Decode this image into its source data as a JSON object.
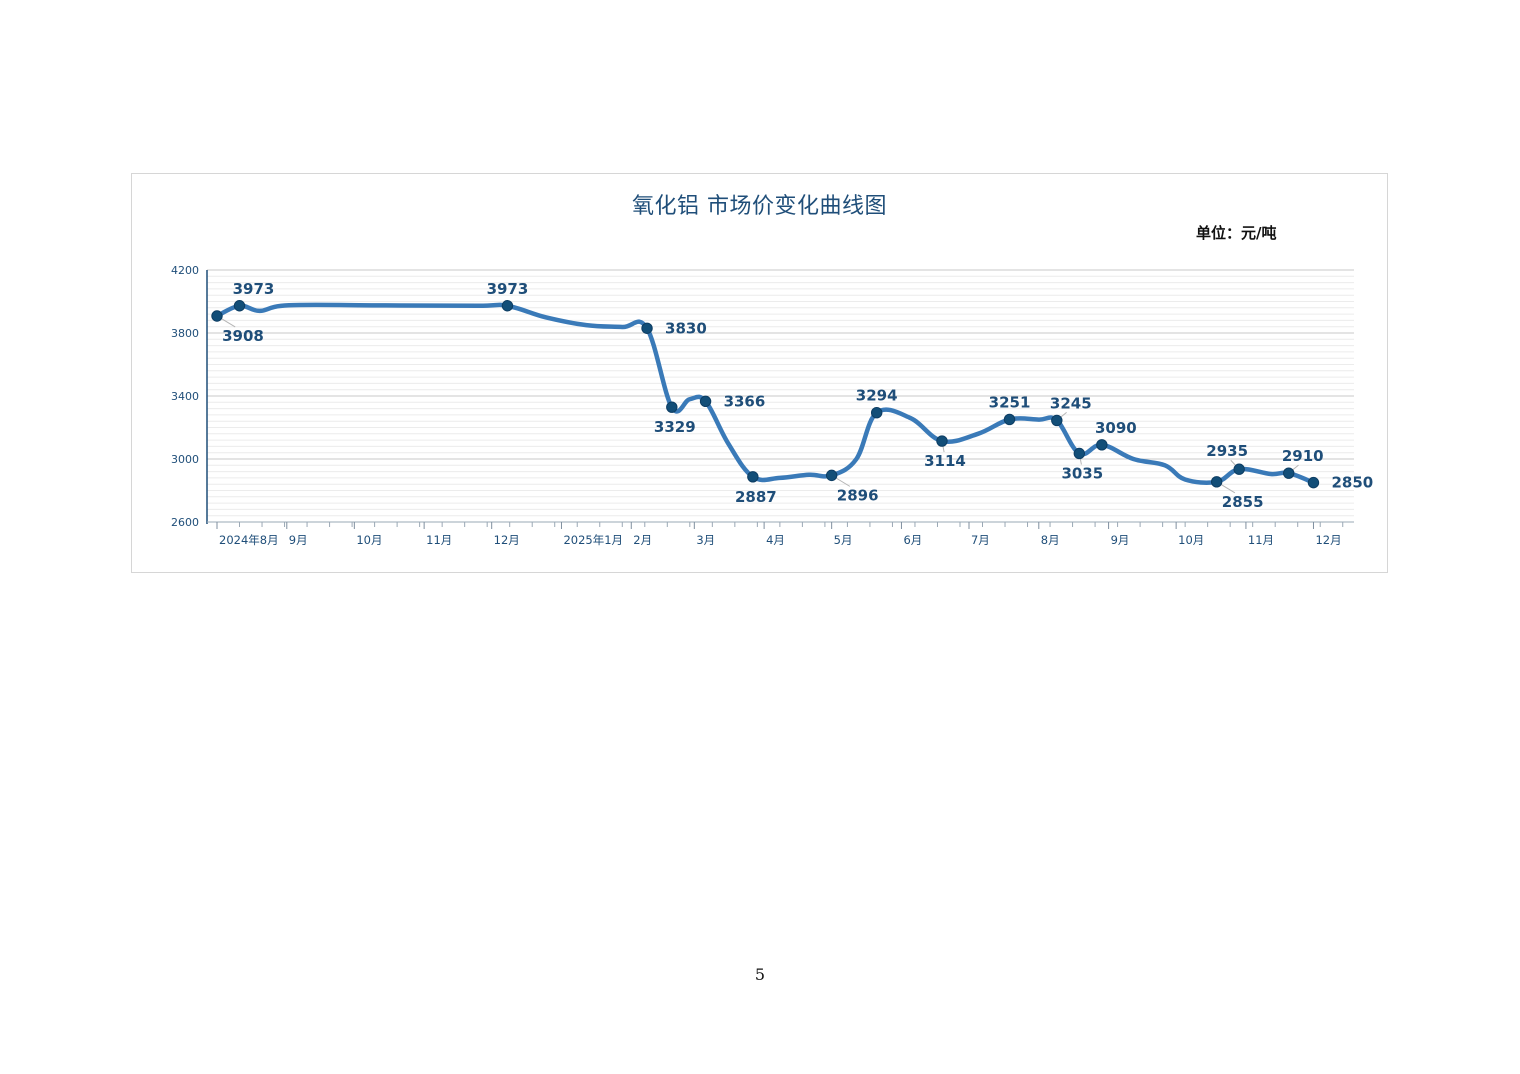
{
  "page": {
    "page_number": "5"
  },
  "chart_data": {
    "type": "line",
    "title": "氧化铝 市场价变化曲线图",
    "unit_label": "单位：元/吨",
    "xlabel": "",
    "ylabel": "",
    "ylim": [
      2600,
      4200
    ],
    "yticks": [
      "4200",
      "3800",
      "3400",
      "3000",
      "2600"
    ],
    "x_range": [
      "2024-08-01",
      "2025-12-19"
    ],
    "month_ticks": [
      {
        "label": "2024年8月",
        "date": "2024-08-01"
      },
      {
        "label": "9月",
        "date": "2024-09-01"
      },
      {
        "label": "10月",
        "date": "2024-10-01"
      },
      {
        "label": "11月",
        "date": "2024-11-01"
      },
      {
        "label": "12月",
        "date": "2024-12-01"
      },
      {
        "label": "2025年1月",
        "date": "2025-01-01"
      },
      {
        "label": "2月",
        "date": "2025-02-01"
      },
      {
        "label": "3月",
        "date": "2025-03-01"
      },
      {
        "label": "4月",
        "date": "2025-04-01"
      },
      {
        "label": "5月",
        "date": "2025-05-01"
      },
      {
        "label": "6月",
        "date": "2025-06-01"
      },
      {
        "label": "7月",
        "date": "2025-07-01"
      },
      {
        "label": "8月",
        "date": "2025-08-01"
      },
      {
        "label": "9月",
        "date": "2025-09-01"
      },
      {
        "label": "10月",
        "date": "2025-10-01"
      },
      {
        "label": "11月",
        "date": "2025-11-01"
      },
      {
        "label": "12月",
        "date": "2025-12-01"
      }
    ],
    "grid": true,
    "legend": "none",
    "colors": {
      "line": "#3a7ab8",
      "marker": "#124e78",
      "label": "#1f4e79",
      "axis": "#1f4e79",
      "grid": "#c8c8c8"
    },
    "series": [
      {
        "values": [
          {
            "date": "2024-08-01",
            "value": 3908
          },
          {
            "date": "2024-08-11",
            "value": 3973
          },
          {
            "date": "2024-08-20",
            "value": 3940
          },
          {
            "date": "2024-09-02",
            "value": 3976
          },
          {
            "date": "2024-10-15",
            "value": 3975
          },
          {
            "date": "2024-11-25",
            "value": 3973
          },
          {
            "date": "2024-12-08",
            "value": 3973
          },
          {
            "date": "2024-12-25",
            "value": 3900
          },
          {
            "date": "2025-01-12",
            "value": 3850
          },
          {
            "date": "2025-01-28",
            "value": 3838
          },
          {
            "date": "2025-02-08",
            "value": 3830
          },
          {
            "date": "2025-02-19",
            "value": 3329
          },
          {
            "date": "2025-02-27",
            "value": 3380
          },
          {
            "date": "2025-03-06",
            "value": 3366
          },
          {
            "date": "2025-03-16",
            "value": 3100
          },
          {
            "date": "2025-03-27",
            "value": 2887
          },
          {
            "date": "2025-04-08",
            "value": 2880
          },
          {
            "date": "2025-04-21",
            "value": 2900
          },
          {
            "date": "2025-05-01",
            "value": 2896
          },
          {
            "date": "2025-05-12",
            "value": 3000
          },
          {
            "date": "2025-05-21",
            "value": 3294
          },
          {
            "date": "2025-06-05",
            "value": 3260
          },
          {
            "date": "2025-06-19",
            "value": 3114
          },
          {
            "date": "2025-07-05",
            "value": 3160
          },
          {
            "date": "2025-07-19",
            "value": 3251
          },
          {
            "date": "2025-08-01",
            "value": 3250
          },
          {
            "date": "2025-08-09",
            "value": 3245
          },
          {
            "date": "2025-08-19",
            "value": 3035
          },
          {
            "date": "2025-08-29",
            "value": 3090
          },
          {
            "date": "2025-09-12",
            "value": 3000
          },
          {
            "date": "2025-09-26",
            "value": 2960
          },
          {
            "date": "2025-10-05",
            "value": 2870
          },
          {
            "date": "2025-10-19",
            "value": 2855
          },
          {
            "date": "2025-10-29",
            "value": 2935
          },
          {
            "date": "2025-11-12",
            "value": 2905
          },
          {
            "date": "2025-11-20",
            "value": 2910
          },
          {
            "date": "2025-12-01",
            "value": 2850
          }
        ]
      }
    ],
    "markers": [
      {
        "date": "2024-08-01",
        "value": 3908,
        "label": "3908",
        "label_pos": "below-right",
        "leader": true
      },
      {
        "date": "2024-08-11",
        "value": 3973,
        "label": "3973",
        "label_pos": "above-right",
        "leader": false
      },
      {
        "date": "2024-12-08",
        "value": 3973,
        "label": "3973",
        "label_pos": "above",
        "leader": false
      },
      {
        "date": "2025-02-08",
        "value": 3830,
        "label": "3830",
        "label_pos": "right",
        "leader": false
      },
      {
        "date": "2025-02-19",
        "value": 3329,
        "label": "3329",
        "label_pos": "below",
        "leader": false
      },
      {
        "date": "2025-03-06",
        "value": 3366,
        "label": "3366",
        "label_pos": "right",
        "leader": false
      },
      {
        "date": "2025-03-27",
        "value": 2887,
        "label": "2887",
        "label_pos": "below",
        "leader": false
      },
      {
        "date": "2025-05-01",
        "value": 2896,
        "label": "2896",
        "label_pos": "below-right",
        "leader": true
      },
      {
        "date": "2025-05-21",
        "value": 3294,
        "label": "3294",
        "label_pos": "above",
        "leader": false
      },
      {
        "date": "2025-06-19",
        "value": 3114,
        "label": "3114",
        "label_pos": "below",
        "leader": true
      },
      {
        "date": "2025-07-19",
        "value": 3251,
        "label": "3251",
        "label_pos": "above",
        "leader": false
      },
      {
        "date": "2025-08-09",
        "value": 3245,
        "label": "3245",
        "label_pos": "above-right",
        "leader": true
      },
      {
        "date": "2025-08-19",
        "value": 3035,
        "label": "3035",
        "label_pos": "below",
        "leader": true
      },
      {
        "date": "2025-08-29",
        "value": 3090,
        "label": "3090",
        "label_pos": "above-right",
        "leader": false
      },
      {
        "date": "2025-10-19",
        "value": 2855,
        "label": "2855",
        "label_pos": "below-right",
        "leader": true
      },
      {
        "date": "2025-10-29",
        "value": 2935,
        "label": "2935",
        "label_pos": "above-left",
        "leader": true
      },
      {
        "date": "2025-11-20",
        "value": 2910,
        "label": "2910",
        "label_pos": "above-right",
        "leader": true
      },
      {
        "date": "2025-12-01",
        "value": 2850,
        "label": "2850",
        "label_pos": "right",
        "leader": false
      }
    ]
  }
}
